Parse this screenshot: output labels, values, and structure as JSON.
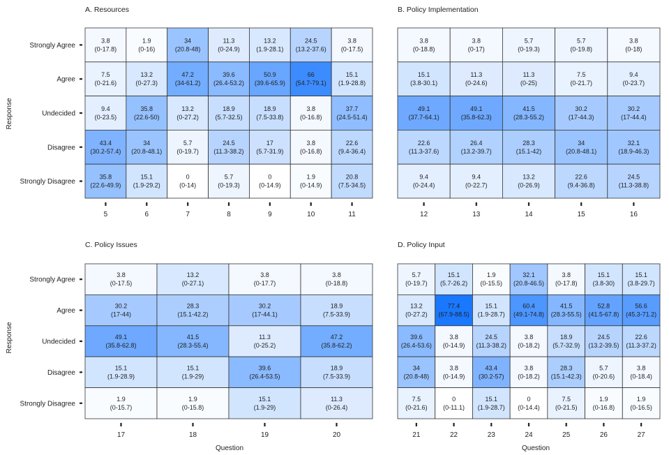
{
  "chart_data": {
    "type": "heatmap",
    "xlabel": "Question",
    "ylabel": "Response",
    "rows": [
      "Strongly Agree",
      "Agree",
      "Undecided",
      "Disagree",
      "Strongly Disagree"
    ],
    "color_low": "#ffffff",
    "color_high": "#1a78ff",
    "value_range": [
      0,
      77.4
    ],
    "panels": [
      {
        "title": "A. Resources",
        "questions": [
          "5",
          "6",
          "7",
          "8",
          "9",
          "10",
          "11"
        ],
        "values": [
          [
            3.8,
            1.9,
            34,
            11.3,
            13.2,
            24.5,
            3.8
          ],
          [
            7.5,
            13.2,
            47.2,
            39.6,
            50.9,
            66,
            15.1
          ],
          [
            9.4,
            35.8,
            13.2,
            18.9,
            18.9,
            3.8,
            37.7
          ],
          [
            43.4,
            34,
            5.7,
            24.5,
            17,
            3.8,
            22.6
          ],
          [
            35.8,
            15.1,
            0,
            5.7,
            0,
            1.9,
            20.8
          ]
        ],
        "value_labels": [
          [
            "3.8",
            "1.9",
            "34",
            "11.3",
            "13.2",
            "24.5",
            "3.8"
          ],
          [
            "7.5",
            "13.2",
            "47.2",
            "39.6",
            "50.9",
            "66",
            "15.1"
          ],
          [
            "9.4",
            "35.8",
            "13.2",
            "18.9",
            "18.9",
            "3.8",
            "37.7"
          ],
          [
            "43.4",
            "34",
            "5.7",
            "24.5",
            "17",
            "3.8",
            "22.6"
          ],
          [
            "35.8",
            "15.1",
            "0",
            "5.7",
            "0",
            "1.9",
            "20.8"
          ]
        ],
        "ci_labels": [
          [
            "(0-17.8)",
            "(0-16)",
            "(20.8-48)",
            "(0-24.9)",
            "(1.9-28.1)",
            "(13.2-37.6)",
            "(0-17.5)"
          ],
          [
            "(0-21.6)",
            "(0-27.3)",
            "(34-61.2)",
            "(26.4-53.2)",
            "(39.6-65.9)",
            "(54.7-79.1)",
            "(1.9-28.8)"
          ],
          [
            "(0-23.5)",
            "(22.6-50)",
            "(0-27.2)",
            "(5.7-32.5)",
            "(7.5-33.8)",
            "(0-16.8)",
            "(24.5-51.4)"
          ],
          [
            "(30.2-57.4)",
            "(20.8-48.1)",
            "(0-19.7)",
            "(11.3-38.2)",
            "(5.7-31.9)",
            "(0-16.8)",
            "(9.4-36.4)"
          ],
          [
            "(22.6-49.9)",
            "(1.9-29.2)",
            "(0-14)",
            "(0-19.3)",
            "(0-14.9)",
            "(0-14.9)",
            "(7.5-34.5)"
          ]
        ]
      },
      {
        "title": "B. Policy Implementation",
        "questions": [
          "12",
          "13",
          "14",
          "15",
          "16"
        ],
        "values": [
          [
            3.8,
            3.8,
            5.7,
            5.7,
            3.8
          ],
          [
            15.1,
            11.3,
            11.3,
            7.5,
            9.4
          ],
          [
            49.1,
            49.1,
            41.5,
            30.2,
            30.2
          ],
          [
            22.6,
            26.4,
            28.3,
            34,
            32.1
          ],
          [
            9.4,
            9.4,
            13.2,
            22.6,
            24.5
          ]
        ],
        "value_labels": [
          [
            "3.8",
            "3.8",
            "5.7",
            "5.7",
            "3.8"
          ],
          [
            "15.1",
            "11.3",
            "11.3",
            "7.5",
            "9.4"
          ],
          [
            "49.1",
            "49.1",
            "41.5",
            "30.2",
            "30.2"
          ],
          [
            "22.6",
            "26.4",
            "28.3",
            "34",
            "32.1"
          ],
          [
            "9.4",
            "9.4",
            "13.2",
            "22.6",
            "24.5"
          ]
        ],
        "ci_labels": [
          [
            "(0-18.8)",
            "(0-17)",
            "(0-19.3)",
            "(0-19.8)",
            "(0-18)"
          ],
          [
            "(3.8-30.1)",
            "(0-24.6)",
            "(0-25)",
            "(0-21.7)",
            "(0-23.7)"
          ],
          [
            "(37.7-64.1)",
            "(35.8-62.3)",
            "(28.3-55.2)",
            "(17-44.3)",
            "(17-44.4)"
          ],
          [
            "(11.3-37.6)",
            "(13.2-39.7)",
            "(15.1-42)",
            "(20.8-48.1)",
            "(18.9-46.3)"
          ],
          [
            "(0-24.4)",
            "(0-22.7)",
            "(0-26.9)",
            "(9.4-36.8)",
            "(11.3-38.8)"
          ]
        ]
      },
      {
        "title": "C. Policy Issues",
        "questions": [
          "17",
          "18",
          "19",
          "20"
        ],
        "values": [
          [
            3.8,
            13.2,
            3.8,
            3.8
          ],
          [
            30.2,
            28.3,
            30.2,
            18.9
          ],
          [
            49.1,
            41.5,
            11.3,
            47.2
          ],
          [
            15.1,
            15.1,
            39.6,
            18.9
          ],
          [
            1.9,
            1.9,
            15.1,
            11.3
          ]
        ],
        "value_labels": [
          [
            "3.8",
            "13.2",
            "3.8",
            "3.8"
          ],
          [
            "30.2",
            "28.3",
            "30.2",
            "18.9"
          ],
          [
            "49.1",
            "41.5",
            "11.3",
            "47.2"
          ],
          [
            "15.1",
            "15.1",
            "39.6",
            "18.9"
          ],
          [
            "1.9",
            "1.9",
            "15.1",
            "11.3"
          ]
        ],
        "ci_labels": [
          [
            "(0-17.5)",
            "(0-27.1)",
            "(0-17.7)",
            "(0-18.8)"
          ],
          [
            "(17-44)",
            "(15.1-42.2)",
            "(17-44.1)",
            "(7.5-33.9)"
          ],
          [
            "(35.8-62.8)",
            "(28.3-55.4)",
            "(0-25.2)",
            "(35.8-62.2)"
          ],
          [
            "(1.9-28.9)",
            "(1.9-29)",
            "(26.4-53.5)",
            "(7.5-33.9)"
          ],
          [
            "(0-15.7)",
            "(0-15.8)",
            "(1.9-29)",
            "(0-26.4)"
          ]
        ]
      },
      {
        "title": "D. Policy Input",
        "questions": [
          "21",
          "22",
          "23",
          "24",
          "25",
          "26",
          "27"
        ],
        "values": [
          [
            5.7,
            15.1,
            1.9,
            32.1,
            3.8,
            15.1,
            15.1
          ],
          [
            13.2,
            77.4,
            15.1,
            60.4,
            41.5,
            52.8,
            56.6
          ],
          [
            39.6,
            3.8,
            24.5,
            3.8,
            18.9,
            24.5,
            22.6
          ],
          [
            34,
            3.8,
            43.4,
            3.8,
            28.3,
            5.7,
            3.8
          ],
          [
            7.5,
            0,
            15.1,
            0,
            7.5,
            1.9,
            1.9
          ]
        ],
        "value_labels": [
          [
            "5.7",
            "15.1",
            "1.9",
            "32.1",
            "3.8",
            "15.1",
            "15.1"
          ],
          [
            "13.2",
            "77.4",
            "15.1",
            "60.4",
            "41.5",
            "52.8",
            "56.6"
          ],
          [
            "39.6",
            "3.8",
            "24.5",
            "3.8",
            "18.9",
            "24.5",
            "22.6"
          ],
          [
            "34",
            "3.8",
            "43.4",
            "3.8",
            "28.3",
            "5.7",
            "3.8"
          ],
          [
            "7.5",
            "0",
            "15.1",
            "0",
            "7.5",
            "1.9",
            "1.9"
          ]
        ],
        "ci_labels": [
          [
            "(0-19.7)",
            "(5.7-26.2)",
            "(0-15.5)",
            "(20.8-46.5)",
            "(0-17.8)",
            "(3.8-30)",
            "(3.8-29.7)"
          ],
          [
            "(0-27.2)",
            "(67.9-88.5)",
            "(1.9-28.7)",
            "(49.1-74.8)",
            "(28.3-55.5)",
            "(41.5-67.8)",
            "(45.3-71.2)"
          ],
          [
            "(26.4-53.6)",
            "(0-14.9)",
            "(11.3-38.2)",
            "(0-18.2)",
            "(5.7-32.9)",
            "(13.2-39.5)",
            "(11.3-37.2)"
          ],
          [
            "(20.8-48)",
            "(0-14.9)",
            "(30.2-57)",
            "(0-18.2)",
            "(15.1-42.3)",
            "(0-20.6)",
            "(0-18.4)"
          ],
          [
            "(0-21.6)",
            "(0-11.1)",
            "(1.9-28.7)",
            "(0-14.4)",
            "(0-21.5)",
            "(0-16.8)",
            "(0-16.5)"
          ]
        ]
      }
    ]
  }
}
